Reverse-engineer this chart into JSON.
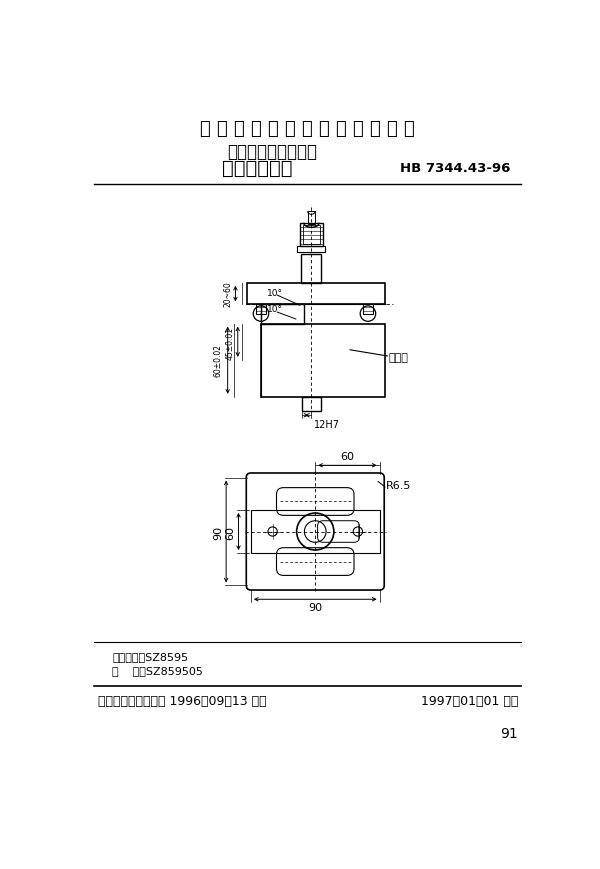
{
  "title_main": "中 华 人 民 共 和 国 航 空 工 业 标 准",
  "title_sub1": "数控机床用夹具元件",
  "title_sub2": "自适应压紧座",
  "std_number": "HB 7344.43-96",
  "footer_left": "中国航空工业总公司 1996－09－13 发布",
  "footer_right": "1997－01－01 实施",
  "page_num": "91",
  "class_code_label": "分类代号：",
  "class_code": "SZ8595",
  "mark_label": "标    记：",
  "mark_code": "SZ859505",
  "bg_color": "#ffffff",
  "line_color": "#000000",
  "dim_note": "标记处"
}
